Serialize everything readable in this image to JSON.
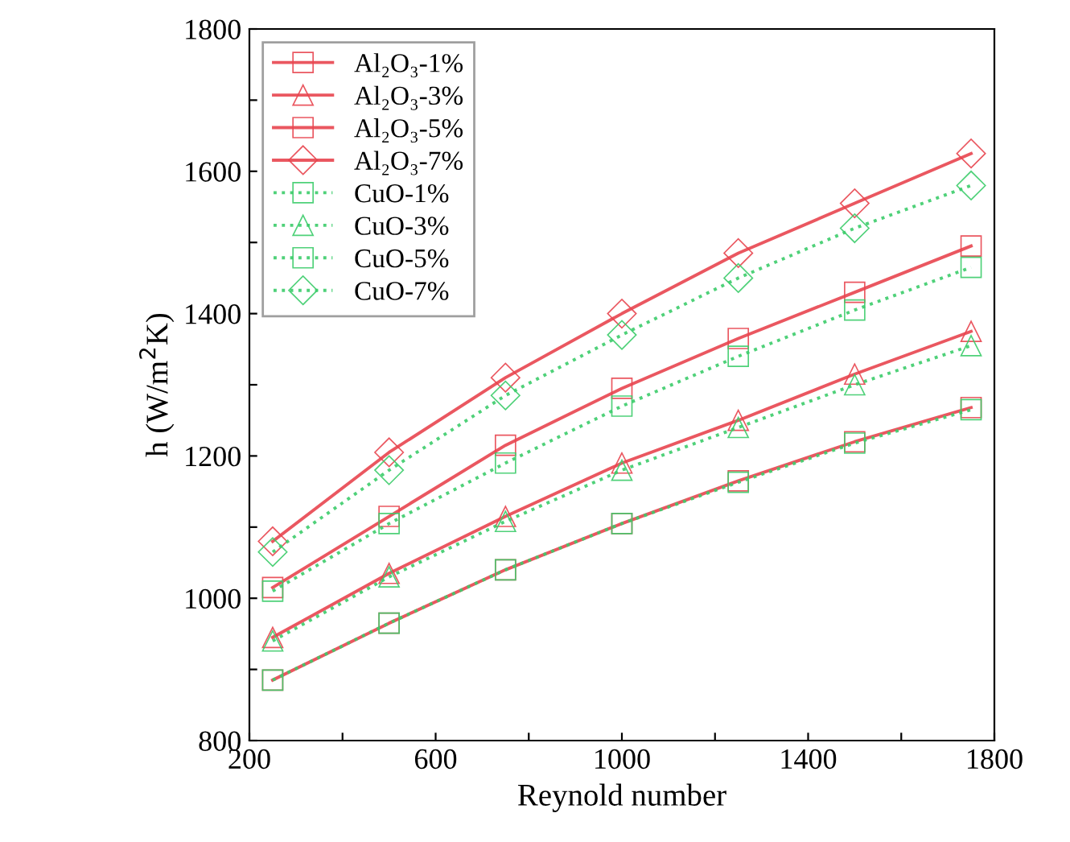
{
  "chart_data": {
    "type": "line",
    "xlabel": "Reynold number",
    "ylabel": "h (W/m$^{2}$K)",
    "x": [
      250,
      500,
      750,
      1000,
      1250,
      1500,
      1750
    ],
    "series": [
      {
        "name": "Al₂O₃-1%",
        "color": "#e8454f",
        "marker": "square",
        "line_style": "solid",
        "values": [
          885,
          965,
          1040,
          1105,
          1165,
          1220,
          1268
        ]
      },
      {
        "name": "Al₂O₃-3%",
        "color": "#e8454f",
        "marker": "triangle",
        "line_style": "solid",
        "values": [
          945,
          1035,
          1115,
          1190,
          1250,
          1315,
          1375
        ]
      },
      {
        "name": "Al₂O₃-5%",
        "color": "#e8454f",
        "marker": "square",
        "line_style": "solid",
        "values": [
          1015,
          1115,
          1215,
          1295,
          1365,
          1430,
          1495
        ]
      },
      {
        "name": "Al₂O₃-7%",
        "color": "#e8454f",
        "marker": "diamond",
        "line_style": "solid",
        "values": [
          1080,
          1205,
          1310,
          1400,
          1485,
          1555,
          1625
        ]
      },
      {
        "name": "CuO-1%",
        "color": "#3ccc6a",
        "marker": "square",
        "line_style": "dotted",
        "values": [
          885,
          965,
          1040,
          1105,
          1163,
          1218,
          1265
        ]
      },
      {
        "name": "CuO-3%",
        "color": "#3ccc6a",
        "marker": "triangle",
        "line_style": "dotted",
        "values": [
          940,
          1030,
          1108,
          1180,
          1240,
          1300,
          1355
        ]
      },
      {
        "name": "CuO-5%",
        "color": "#3ccc6a",
        "marker": "square",
        "line_style": "dotted",
        "values": [
          1010,
          1105,
          1190,
          1270,
          1340,
          1405,
          1465
        ]
      },
      {
        "name": "CuO-7%",
        "color": "#3ccc6a",
        "marker": "diamond",
        "line_style": "dotted",
        "values": [
          1065,
          1180,
          1285,
          1370,
          1450,
          1520,
          1580
        ]
      }
    ],
    "xlim": [
      200,
      1800
    ],
    "xticks": [
      200,
      {
        "value": 400,
        "label": null
      },
      600,
      {
        "value": 800,
        "label": null
      },
      1000,
      {
        "value": 1200,
        "label": null
      },
      1400,
      {
        "value": 1600,
        "label": null
      },
      1800
    ],
    "ylim": [
      800,
      1800
    ],
    "yticks": [
      800,
      {
        "value": 900,
        "label": null
      },
      1000,
      {
        "value": 1100,
        "label": null
      },
      1200,
      {
        "value": 1300,
        "label": null
      },
      1400,
      {
        "value": 1500,
        "label": null
      },
      1600,
      {
        "value": 1700,
        "label": null
      },
      1800
    ],
    "grid": false,
    "legend": "top left"
  }
}
